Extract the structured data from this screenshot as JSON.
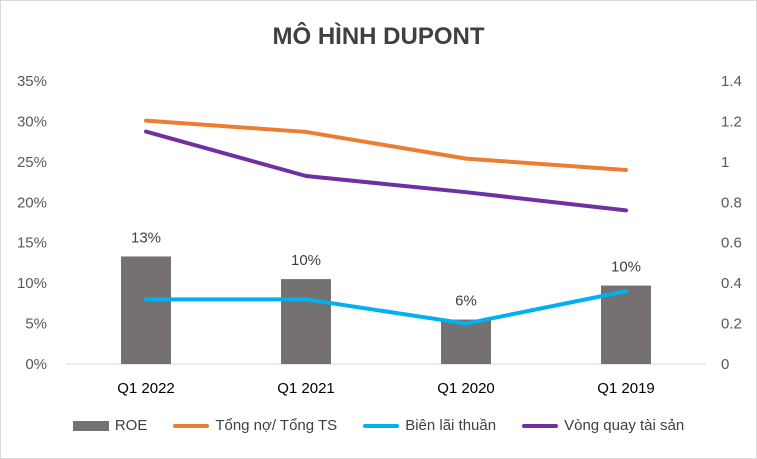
{
  "chart_data": {
    "type": "bar",
    "title": "MÔ HÌNH DUPONT",
    "categories": [
      "Q1 2022",
      "Q1 2021",
      "Q1 2020",
      "Q1 2019"
    ],
    "y_left": {
      "ticks": [
        "0%",
        "5%",
        "10%",
        "15%",
        "20%",
        "25%",
        "30%",
        "35%"
      ],
      "ylim": [
        0,
        0.35
      ]
    },
    "y_right": {
      "ticks": [
        "0",
        "0.2",
        "0.4",
        "0.6",
        "0.8",
        "1",
        "1.2",
        "1.4"
      ],
      "ylim": [
        0,
        1.4
      ]
    },
    "series": [
      {
        "name": "ROE",
        "type": "bar",
        "axis": "left",
        "color": "#767171",
        "values": [
          0.133,
          0.105,
          0.055,
          0.097
        ],
        "data_labels": [
          "13%",
          "10%",
          "6%",
          "10%"
        ]
      },
      {
        "name": "Tổng nợ/ Tổng TS",
        "type": "line",
        "axis": "left",
        "color": "#ED7D31",
        "values": [
          0.301,
          0.287,
          0.254,
          0.24
        ]
      },
      {
        "name": "Biên lãi thuần",
        "type": "line",
        "axis": "left",
        "color": "#00B0F0",
        "values": [
          0.08,
          0.08,
          0.05,
          0.09
        ]
      },
      {
        "name": "Vòng quay tài sản",
        "type": "line",
        "axis": "right",
        "color": "#7030A0",
        "values": [
          1.15,
          0.93,
          0.85,
          0.76
        ]
      }
    ],
    "grid": false,
    "legend": "bottom"
  }
}
